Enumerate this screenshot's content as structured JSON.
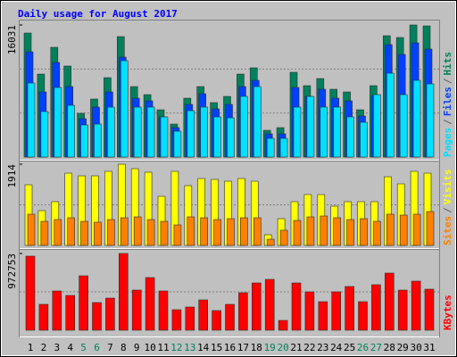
{
  "title": "Daily usage for August 2017",
  "legend_separator": "/",
  "chart_data": [
    {
      "type": "bar",
      "ylim": [
        0,
        16031
      ],
      "yticks": [
        16031
      ],
      "series": [
        {
          "name": "Hits",
          "color": "#00805c",
          "values": [
            15054,
            10072,
            13321,
            11047,
            5307,
            7040,
            9639,
            14621,
            8556,
            7581,
            5740,
            4007,
            7148,
            8556,
            6606,
            7364,
            10072,
            10830,
            3249,
            3574,
            10289,
            8664,
            9530,
            8231,
            7906,
            5740,
            8664,
            14729,
            14512,
            16031,
            15920
          ]
        },
        {
          "name": "Files",
          "color": "#0040ff",
          "values": [
            12779,
            7906,
            11480,
            8556,
            4657,
            6065,
            7906,
            12130,
            7148,
            6823,
            4874,
            3574,
            6390,
            7689,
            5848,
            6390,
            8556,
            9314,
            2816,
            2816,
            8447,
            7364,
            8231,
            7148,
            6823,
            4982,
            7473,
            13646,
            12455,
            13862,
            13104
          ]
        },
        {
          "name": "Pages",
          "color": "#00e0ff",
          "values": [
            8989,
            5523,
            8447,
            6281,
            3899,
            4007,
            6065,
            11696,
            6065,
            6065,
            4874,
            3141,
            5632,
            6065,
            4874,
            4765,
            7364,
            8556,
            2274,
            2274,
            6065,
            7364,
            6065,
            6065,
            4874,
            4224,
            7581,
            10180,
            7581,
            9314,
            8881
          ]
        }
      ]
    },
    {
      "type": "bar",
      "ylim": [
        0,
        1914
      ],
      "yticks": [
        1914
      ],
      "series": [
        {
          "name": "Visits",
          "color": "#ffff00",
          "values": [
            1430,
            820,
            1031,
            1703,
            1640,
            1640,
            1746,
            1914,
            1809,
            1725,
            1157,
            1746,
            1409,
            1577,
            1556,
            1514,
            1577,
            1514,
            252,
            631,
            1031,
            1199,
            1199,
            925,
            1031,
            1031,
            1031,
            1619,
            1451,
            1746,
            1703
          ]
        },
        {
          "name": "Sites",
          "color": "#ff8000",
          "values": [
            736,
            568,
            610,
            652,
            568,
            547,
            610,
            652,
            673,
            610,
            568,
            484,
            673,
            652,
            610,
            631,
            652,
            652,
            147,
            358,
            589,
            673,
            694,
            652,
            610,
            631,
            568,
            736,
            715,
            736,
            799
          ]
        }
      ]
    },
    {
      "type": "bar",
      "ylim": [
        0,
        972753
      ],
      "yticks": [
        972753
      ],
      "categories": [
        "1",
        "2",
        "3",
        "4",
        "5",
        "6",
        "7",
        "8",
        "9",
        "10",
        "11",
        "12",
        "13",
        "14",
        "15",
        "16",
        "17",
        "18",
        "19",
        "20",
        "21",
        "22",
        "23",
        "24",
        "25",
        "26",
        "27",
        "28",
        "29",
        "30",
        "31"
      ],
      "category_colors": [
        "#000",
        "#000",
        "#000",
        "#000",
        "#00805c",
        "#00805c",
        "#000",
        "#000",
        "#000",
        "#000",
        "#000",
        "#00805c",
        "#00805c",
        "#000",
        "#000",
        "#000",
        "#000",
        "#000",
        "#00805c",
        "#00805c",
        "#000",
        "#000",
        "#000",
        "#000",
        "#000",
        "#00805c",
        "#00805c",
        "#000",
        "#000",
        "#000",
        "#000"
      ],
      "series": [
        {
          "name": "KBytes",
          "color": "#ff0000",
          "values": [
            938813,
            328019,
            497684,
            441129,
            689971,
            350641,
            407196,
            972753,
            508995,
            667349,
            497684,
            260153,
            294086,
            384574,
            248842,
            328019,
            475062,
            599483,
            644727,
            124421,
            599483,
            486373,
            361952,
            486373,
            554239,
            361952,
            576861,
            723904,
            508995,
            622105,
            520306
          ]
        }
      ]
    }
  ]
}
